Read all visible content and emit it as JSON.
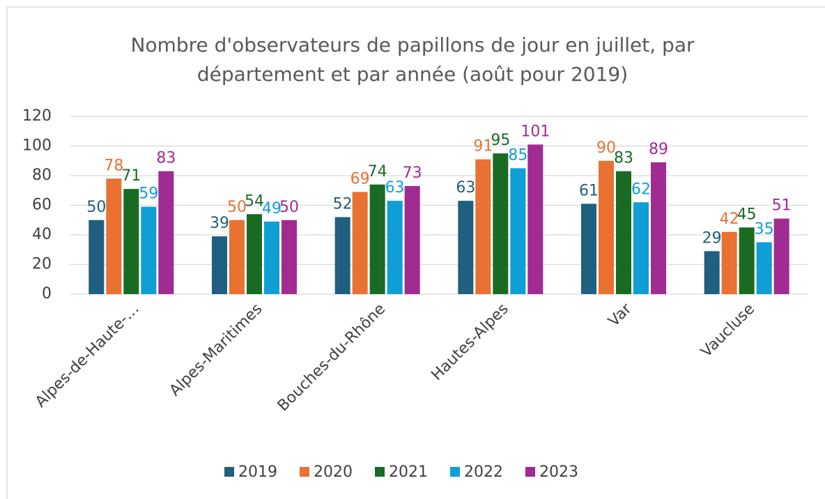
{
  "chart_data": {
    "type": "bar",
    "title": "Nombre d'observateurs de papillons de jour en juillet, par département et par année (août pour 2019)",
    "categories": [
      "Alpes-de-Haute-…",
      "Alpes-Maritimes",
      "Bouches-du-Rhône",
      "Hautes-Alpes",
      "Var",
      "Vaucluse"
    ],
    "series": [
      {
        "name": "2019",
        "color": "#1f5f7f",
        "values": [
          50,
          39,
          52,
          63,
          61,
          29
        ]
      },
      {
        "name": "2020",
        "color": "#e97132",
        "values": [
          78,
          50,
          69,
          91,
          90,
          42
        ]
      },
      {
        "name": "2021",
        "color": "#196b24",
        "values": [
          71,
          54,
          74,
          95,
          83,
          45
        ]
      },
      {
        "name": "2022",
        "color": "#0f9ed5",
        "values": [
          59,
          49,
          63,
          85,
          62,
          35
        ]
      },
      {
        "name": "2023",
        "color": "#a02b93",
        "values": [
          83,
          50,
          73,
          101,
          89,
          51
        ]
      }
    ],
    "ylim": [
      0,
      120
    ],
    "yticks": [
      0,
      20,
      40,
      60,
      80,
      100,
      120
    ],
    "grid": true,
    "legend": "bottom"
  }
}
